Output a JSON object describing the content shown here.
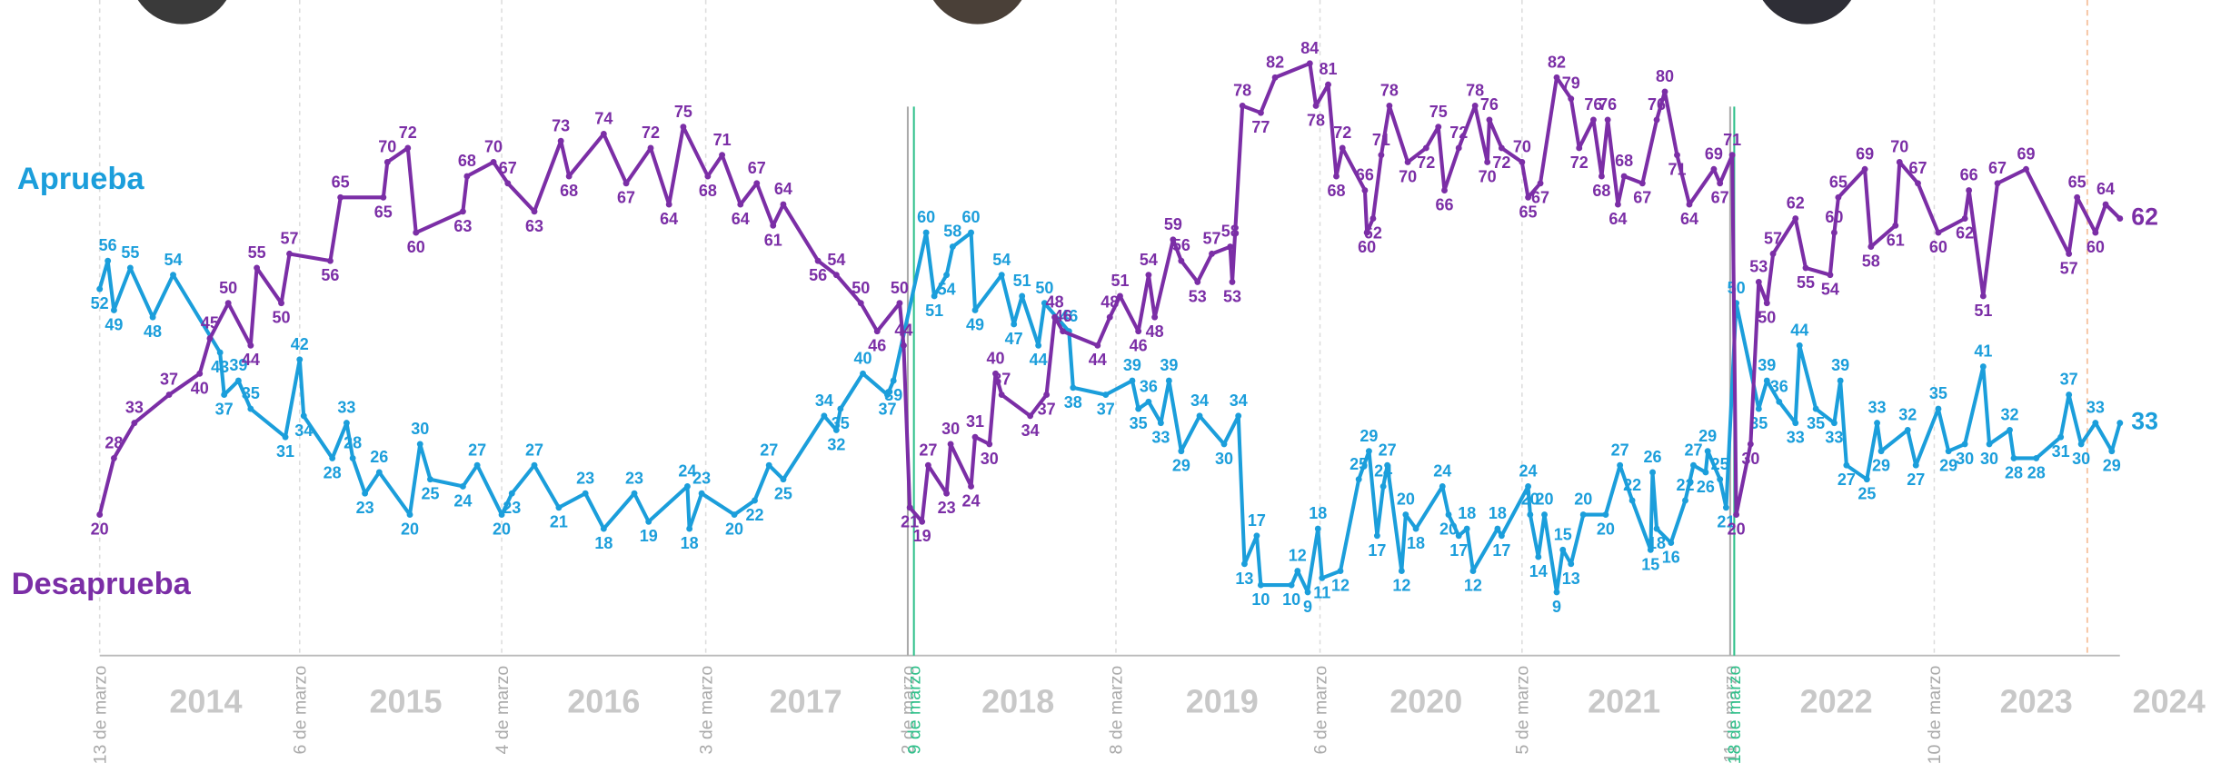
{
  "chart_data": {
    "type": "line",
    "xlim": [
      2014.2,
      2024.1
    ],
    "ylim": [
      0,
      93
    ],
    "xticks": [
      {
        "value": 2014.2,
        "label": "13 de marzo",
        "color": "#aaaaaa",
        "style": "dashed"
      },
      {
        "value": 2015.18,
        "label": "6 de marzo",
        "color": "#aaaaaa",
        "style": "dashed"
      },
      {
        "value": 2016.17,
        "label": "4 de marzo",
        "color": "#aaaaaa",
        "style": "dashed"
      },
      {
        "value": 2017.17,
        "label": "3 de marzo",
        "color": "#aaaaaa",
        "style": "dashed"
      },
      {
        "value": 2018.16,
        "label": "2 de marzo",
        "color": "#aaaaaa",
        "style": "solid"
      },
      {
        "value": 2018.19,
        "label": "9 de marzo",
        "color": "#2ec08a",
        "style": "solid"
      },
      {
        "value": 2019.18,
        "label": "8 de marzo",
        "color": "#aaaaaa",
        "style": "dashed"
      },
      {
        "value": 2020.18,
        "label": "6 de marzo",
        "color": "#aaaaaa",
        "style": "dashed"
      },
      {
        "value": 2021.17,
        "label": "5 de marzo",
        "color": "#aaaaaa",
        "style": "dashed"
      },
      {
        "value": 2022.19,
        "label": "11 de marzo",
        "color": "#aaaaaa",
        "style": "solid"
      },
      {
        "value": 2022.21,
        "label": "18 de marzo",
        "color": "#2ec08a",
        "style": "solid"
      },
      {
        "value": 2023.19,
        "label": "10 de marzo",
        "color": "#aaaaaa",
        "style": "dashed"
      }
    ],
    "year_labels": [
      {
        "value": 2014.72,
        "label": "2014"
      },
      {
        "value": 2015.7,
        "label": "2015"
      },
      {
        "value": 2016.67,
        "label": "2016"
      },
      {
        "value": 2017.66,
        "label": "2017"
      },
      {
        "value": 2018.7,
        "label": "2018"
      },
      {
        "value": 2019.7,
        "label": "2019"
      },
      {
        "value": 2020.7,
        "label": "2020"
      },
      {
        "value": 2021.67,
        "label": "2021"
      },
      {
        "value": 2022.71,
        "label": "2022"
      },
      {
        "value": 2023.69,
        "label": "2023"
      },
      {
        "value": 2024.34,
        "label": "2024"
      }
    ],
    "marker_line": {
      "value": 2023.94,
      "color": "#f6c3a0"
    },
    "series": [
      {
        "name": "Aprueba",
        "color": "#1b9edb",
        "x": [
          2014.2,
          2014.24,
          2014.27,
          2014.35,
          2014.46,
          2014.56,
          2014.79,
          2014.81,
          2014.88,
          2014.94,
          2015.11,
          2015.18,
          2015.2,
          2015.34,
          2015.41,
          2015.44,
          2015.5,
          2015.57,
          2015.72,
          2015.77,
          2015.82,
          2015.98,
          2016.05,
          2016.17,
          2016.22,
          2016.33,
          2016.45,
          2016.58,
          2016.67,
          2016.82,
          2016.89,
          2017.08,
          2017.09,
          2017.15,
          2017.31,
          2017.41,
          2017.48,
          2017.55,
          2017.75,
          2017.81,
          2017.83,
          2017.94,
          2018.06,
          2018.09,
          2018.25,
          2018.29,
          2018.35,
          2018.38,
          2018.47,
          2018.49,
          2018.62,
          2018.68,
          2018.72,
          2018.8,
          2018.83,
          2018.95,
          2018.97,
          2019.13,
          2019.26,
          2019.29,
          2019.34,
          2019.4,
          2019.44,
          2019.5,
          2019.59,
          2019.71,
          2019.78,
          2019.81,
          2019.87,
          2019.89,
          2020.04,
          2020.07,
          2020.12,
          2020.17,
          2020.19,
          2020.28,
          2020.37,
          2020.42,
          2020.46,
          2020.49,
          2020.51,
          2020.58,
          2020.6,
          2020.65,
          2020.78,
          2020.81,
          2020.86,
          2020.9,
          2020.93,
          2021.05,
          2021.07,
          2021.2,
          2021.21,
          2021.25,
          2021.28,
          2021.34,
          2021.37,
          2021.41,
          2021.47,
          2021.58,
          2021.65,
          2021.71,
          2021.8,
          2021.81,
          2021.83,
          2021.9,
          2021.97,
          2022.01,
          2022.07,
          2022.08,
          2022.14,
          2022.17,
          2022.22,
          2022.33,
          2022.37,
          2022.43,
          2022.51,
          2022.53,
          2022.61,
          2022.7,
          2022.73,
          2022.76,
          2022.86,
          2022.91,
          2022.93,
          2023.06,
          2023.1,
          2023.21,
          2023.26,
          2023.34,
          2023.43,
          2023.46,
          2023.56,
          2023.58,
          2023.69,
          2023.81,
          2023.85,
          2023.91,
          2023.98,
          2024.06,
          2024.1
        ],
        "values": [
          52,
          56,
          49,
          55,
          48,
          54,
          43,
          37,
          39,
          35,
          31,
          42,
          34,
          28,
          33,
          28,
          23,
          26,
          20,
          30,
          25,
          24,
          27,
          20,
          23,
          27,
          21,
          23,
          18,
          23,
          19,
          24,
          18,
          23,
          20,
          22,
          27,
          25,
          34,
          32,
          35,
          40,
          37,
          39,
          60,
          51,
          54,
          58,
          60,
          49,
          54,
          47,
          51,
          44,
          50,
          46,
          38,
          37,
          39,
          35,
          36,
          33,
          39,
          29,
          34,
          30,
          34,
          13,
          17,
          10,
          10,
          12,
          9,
          18,
          11,
          12,
          25,
          29,
          17,
          24,
          27,
          12,
          20,
          18,
          24,
          20,
          17,
          18,
          12,
          18,
          17,
          24,
          20,
          14,
          20,
          9,
          15,
          13,
          20,
          20,
          27,
          22,
          15,
          26,
          18,
          16,
          22,
          27,
          26,
          29,
          25,
          21,
          50,
          35,
          39,
          36,
          33,
          44,
          35,
          33,
          39,
          27,
          25,
          33,
          29,
          32,
          27,
          35,
          29,
          30,
          41,
          30,
          32,
          28,
          28,
          31,
          37,
          30,
          33,
          29,
          33
        ]
      },
      {
        "name": "Desaprueba",
        "color": "#7b2ea6",
        "x": [
          2014.2,
          2014.27,
          2014.37,
          2014.54,
          2014.69,
          2014.74,
          2014.83,
          2014.94,
          2014.97,
          2015.09,
          2015.13,
          2015.33,
          2015.38,
          2015.59,
          2015.61,
          2015.71,
          2015.75,
          2015.98,
          2016.0,
          2016.13,
          2016.2,
          2016.33,
          2016.46,
          2016.5,
          2016.67,
          2016.78,
          2016.9,
          2016.99,
          2017.06,
          2017.18,
          2017.25,
          2017.34,
          2017.42,
          2017.5,
          2017.55,
          2017.72,
          2017.81,
          2017.93,
          2018.01,
          2018.12,
          2018.14,
          2018.17,
          2018.23,
          2018.26,
          2018.35,
          2018.37,
          2018.47,
          2018.49,
          2018.56,
          2018.59,
          2018.62,
          2018.76,
          2018.84,
          2018.88,
          2018.92,
          2019.09,
          2019.15,
          2019.2,
          2019.29,
          2019.34,
          2019.37,
          2019.46,
          2019.5,
          2019.58,
          2019.65,
          2019.74,
          2019.75,
          2019.8,
          2019.89,
          2019.96,
          2020.13,
          2020.16,
          2020.22,
          2020.26,
          2020.29,
          2020.4,
          2020.41,
          2020.44,
          2020.48,
          2020.52,
          2020.61,
          2020.7,
          2020.76,
          2020.79,
          2020.86,
          2020.94,
          2021.0,
          2021.01,
          2021.07,
          2021.17,
          2021.2,
          2021.26,
          2021.34,
          2021.41,
          2021.45,
          2021.52,
          2021.56,
          2021.59,
          2021.64,
          2021.67,
          2021.76,
          2021.83,
          2021.87,
          2021.93,
          2021.99,
          2022.11,
          2022.14,
          2022.2,
          2022.22,
          2022.29,
          2022.33,
          2022.37,
          2022.4,
          2022.51,
          2022.56,
          2022.68,
          2022.7,
          2022.72,
          2022.85,
          2022.88,
          2023.0,
          2023.02,
          2023.11,
          2023.21,
          2023.34,
          2023.36,
          2023.43,
          2023.5,
          2023.64,
          2023.85,
          2023.89,
          2023.98,
          2024.03,
          2024.1
        ],
        "values": [
          20,
          28,
          33,
          37,
          40,
          45,
          50,
          44,
          55,
          50,
          57,
          56,
          65,
          65,
          70,
          72,
          60,
          63,
          68,
          70,
          67,
          63,
          73,
          68,
          74,
          67,
          72,
          64,
          75,
          68,
          71,
          64,
          67,
          61,
          64,
          56,
          54,
          50,
          46,
          50,
          44,
          21,
          19,
          27,
          23,
          30,
          24,
          31,
          30,
          40,
          37,
          34,
          37,
          48,
          46,
          44,
          48,
          51,
          46,
          54,
          48,
          59,
          56,
          53,
          57,
          58,
          53,
          78,
          77,
          82,
          84,
          78,
          81,
          68,
          72,
          66,
          60,
          62,
          71,
          78,
          70,
          72,
          75,
          66,
          72,
          78,
          70,
          76,
          72,
          70,
          65,
          67,
          82,
          79,
          72,
          76,
          68,
          76,
          64,
          68,
          67,
          76,
          80,
          71,
          64,
          69,
          67,
          71,
          20,
          30,
          53,
          50,
          57,
          62,
          55,
          54,
          60,
          65,
          69,
          58,
          61,
          70,
          67,
          60,
          62,
          66,
          51,
          67,
          69,
          57,
          65,
          60,
          64,
          62
        ]
      }
    ]
  }
}
